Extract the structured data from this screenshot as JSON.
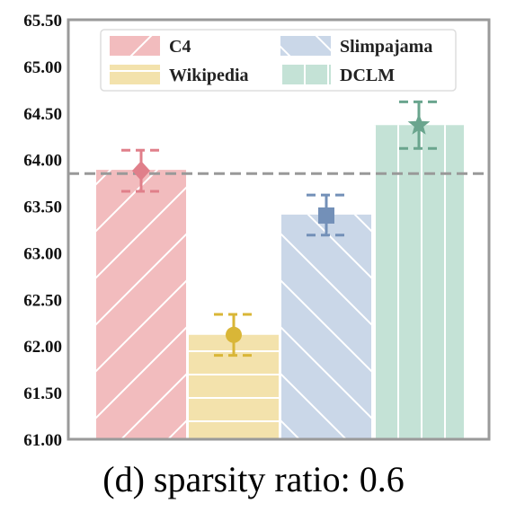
{
  "chart_data": {
    "type": "bar",
    "categories": [
      "C4",
      "Wikipedia",
      "Slimpajama",
      "DCLM"
    ],
    "values": [
      63.89,
      62.12,
      63.41,
      64.37
    ],
    "point_estimates": [
      63.88,
      62.12,
      63.4,
      64.37
    ],
    "error_low": [
      63.66,
      61.9,
      63.19,
      64.12
    ],
    "error_high": [
      64.1,
      62.34,
      63.62,
      64.62
    ],
    "markers": [
      "diamond",
      "circle",
      "square",
      "star"
    ],
    "colors": [
      "#f2bcbe",
      "#f3e2ac",
      "#cad7e8",
      "#c4e2d6"
    ],
    "marker_colors": [
      "#e07f8a",
      "#d9b637",
      "#7390b8",
      "#6aa58e"
    ],
    "hatches": [
      "slash",
      "horizontal",
      "backslash",
      "vertical"
    ],
    "baseline": 63.85,
    "ylim": [
      61.0,
      65.5
    ],
    "yticks": [
      "61.00",
      "61.50",
      "62.00",
      "62.50",
      "63.00",
      "63.50",
      "64.00",
      "64.50",
      "65.00",
      "65.50"
    ],
    "legend": {
      "placement": "top",
      "entries": [
        "C4",
        "Slimpajama",
        "Wikipedia",
        "DCLM"
      ]
    },
    "title": "",
    "xlabel": "",
    "ylabel": ""
  },
  "caption": "(d) sparsity ratio: 0.6"
}
